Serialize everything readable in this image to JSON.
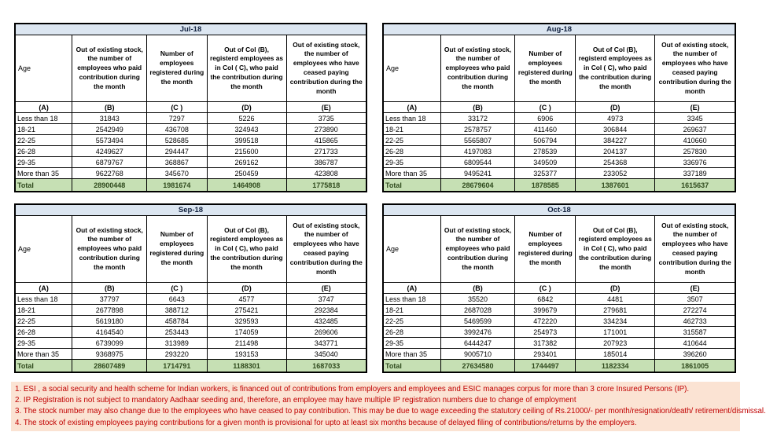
{
  "colors": {
    "table_title_bg": "#DCE6F1",
    "total_row_bg": "#C6E0B4",
    "total_row_text": "#2F4A1D",
    "footnote_bg": "#FBE3D3",
    "footnote_text": "#C00000",
    "border": "#000000"
  },
  "column_letters": [
    "(A)",
    "(B)",
    "(C )",
    "(D)",
    "(E)"
  ],
  "column_headers": {
    "a": "Age",
    "b": "Out of existing stock, the number of employees who paid contribution during the month",
    "c": "Number of employees registered during the month",
    "d": "Out of Col (B), registerd employees as in Col ( C), who paid the contribution during the month",
    "e": "Out of existing stock, the number of  employees who have ceased paying contribution during the month"
  },
  "tables": [
    {
      "title": "Jul-18",
      "rows": [
        [
          "Less than 18",
          "31843",
          "7297",
          "5226",
          "3735"
        ],
        [
          "18-21",
          "2542949",
          "436708",
          "324943",
          "273890"
        ],
        [
          "22-25",
          "5573494",
          "528685",
          "399518",
          "415865"
        ],
        [
          "26-28",
          "4249627",
          "294447",
          "215600",
          "271733"
        ],
        [
          "29-35",
          "6879767",
          "368867",
          "269162",
          "386787"
        ],
        [
          "More than 35",
          "9622768",
          "345670",
          "250459",
          "423808"
        ]
      ],
      "total": [
        "Total",
        "28900448",
        "1981674",
        "1464908",
        "1775818"
      ]
    },
    {
      "title": "Aug-18",
      "rows": [
        [
          "Less than 18",
          "33172",
          "6906",
          "4973",
          "3345"
        ],
        [
          "18-21",
          "2578757",
          "411460",
          "306844",
          "269637"
        ],
        [
          "22-25",
          "5565807",
          "506794",
          "384227",
          "410660"
        ],
        [
          "26-28",
          "4197083",
          "278539",
          "204137",
          "257830"
        ],
        [
          "29-35",
          "6809544",
          "349509",
          "254368",
          "336976"
        ],
        [
          "More than 35",
          "9495241",
          "325377",
          "233052",
          "337189"
        ]
      ],
      "total": [
        "Total",
        "28679604",
        "1878585",
        "1387601",
        "1615637"
      ]
    },
    {
      "title": "Sep-18",
      "rows": [
        [
          "Less than 18",
          "37797",
          "6643",
          "4577",
          "3747"
        ],
        [
          "18-21",
          "2677898",
          "388712",
          "275421",
          "292384"
        ],
        [
          "22-25",
          "5619180",
          "458784",
          "329593",
          "432485"
        ],
        [
          "26-28",
          "4164540",
          "253443",
          "174059",
          "269606"
        ],
        [
          "29-35",
          "6739099",
          "313989",
          "211498",
          "343771"
        ],
        [
          "More than 35",
          "9368975",
          "293220",
          "193153",
          "345040"
        ]
      ],
      "total": [
        "Total",
        "28607489",
        "1714791",
        "1188301",
        "1687033"
      ]
    },
    {
      "title": "Oct-18",
      "rows": [
        [
          "Less than 18",
          "35520",
          "6842",
          "4481",
          "3507"
        ],
        [
          "18-21",
          "2687028",
          "399679",
          "279681",
          "272274"
        ],
        [
          "22-25",
          "5469599",
          "472220",
          "334234",
          "462733"
        ],
        [
          "26-28",
          "3992476",
          "254973",
          "171001",
          "315587"
        ],
        [
          "29-35",
          "6444247",
          "317382",
          "207923",
          "410644"
        ],
        [
          "More than 35",
          "9005710",
          "293401",
          "185014",
          "396260"
        ]
      ],
      "total": [
        "Total",
        "27634580",
        "1744497",
        "1182334",
        "1861005"
      ]
    }
  ],
  "footnotes": [
    "1. ESI , a social security and health scheme for Indian workers, is financed out of contributions from employers and employees and ESIC manages corpus for more than 3 crore Insured Persons (IP).",
    "2. IP Registration is not subject to mandatory Aadhaar seeding and, therefore, an employee may have multiple IP registration numbers due to change of employment",
    "3. The stock number may also change due to the employees who have ceased to pay contribution. This may  be due to wage exceeding the statutory ceiling of  Rs.21000/- per month/resignation/death/ retirement/dismissal.",
    "4. The stock of existing employees paying contributions for a given month is provisional for upto at least six months because of delayed filing of contributions/returns by the employers."
  ]
}
